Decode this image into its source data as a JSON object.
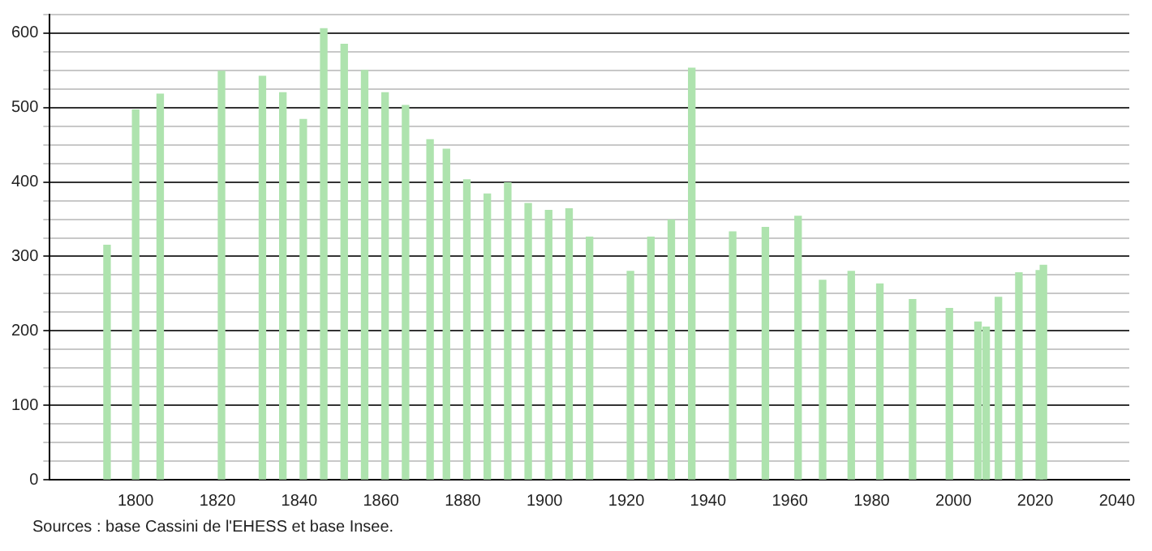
{
  "chart_data": {
    "type": "bar",
    "color": "#aee3ae",
    "x": [
      1793,
      1800,
      1806,
      1821,
      1831,
      1836,
      1841,
      1846,
      1851,
      1856,
      1861,
      1866,
      1872,
      1876,
      1881,
      1886,
      1891,
      1896,
      1901,
      1906,
      1911,
      1921,
      1926,
      1931,
      1936,
      1946,
      1954,
      1962,
      1968,
      1975,
      1982,
      1990,
      1999,
      2006,
      2008,
      2011,
      2016,
      2021,
      2022
    ],
    "values": [
      315,
      497,
      518,
      549,
      542,
      520,
      484,
      606,
      585,
      550,
      520,
      503,
      457,
      444,
      403,
      384,
      399,
      371,
      362,
      364,
      326,
      280,
      326,
      349,
      553,
      333,
      339,
      354,
      268,
      280,
      263,
      242,
      230,
      212,
      205,
      245,
      278,
      281,
      288
    ],
    "xlim": [
      1779,
      2043
    ],
    "xticks": [
      1800,
      1820,
      1840,
      1860,
      1880,
      1900,
      1920,
      1940,
      1960,
      1980,
      2000,
      2020,
      2040
    ],
    "ylim": [
      0,
      625
    ],
    "yticks": [
      0,
      {
        "value": 25,
        "label": null
      },
      {
        "value": 50,
        "label": null
      },
      {
        "value": 75,
        "label": null
      },
      100,
      {
        "value": 125,
        "label": null
      },
      {
        "value": 150,
        "label": null
      },
      {
        "value": 175,
        "label": null
      },
      200,
      {
        "value": 225,
        "label": null
      },
      {
        "value": 250,
        "label": null
      },
      {
        "value": 275,
        "label": null
      },
      300,
      {
        "value": 325,
        "label": null
      },
      {
        "value": 350,
        "label": null
      },
      {
        "value": 375,
        "label": null
      },
      400,
      {
        "value": 425,
        "label": null
      },
      {
        "value": 450,
        "label": null
      },
      {
        "value": 475,
        "label": null
      },
      500,
      {
        "value": 525,
        "label": null
      },
      {
        "value": 550,
        "label": null
      },
      {
        "value": 575,
        "label": null
      },
      600,
      {
        "value": 625,
        "label": null
      }
    ],
    "grid": "y",
    "annotations": [
      "Sources : base Cassini de l'EHESS et base Insee."
    ]
  }
}
